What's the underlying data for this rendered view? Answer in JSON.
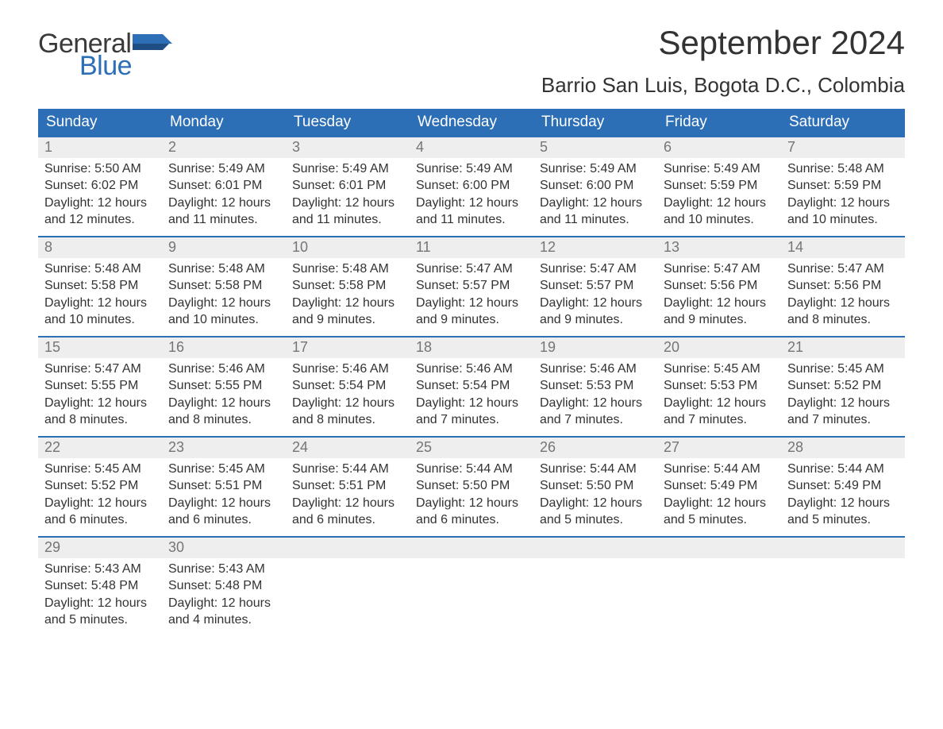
{
  "brand": {
    "word1": "General",
    "word2": "Blue",
    "color_gray": "#3a3a3a",
    "color_blue": "#2d6fb6"
  },
  "header": {
    "month_title": "September 2024",
    "location": "Barrio San Luis, Bogota D.C., Colombia"
  },
  "style": {
    "header_bg": "#2d6fb6",
    "header_fg": "#ffffff",
    "daynum_bg": "#eeeeee",
    "daynum_fg": "#757575",
    "row_border": "#2d6fb6",
    "body_text": "#333333",
    "page_bg": "#ffffff",
    "th_fontsize": 19,
    "daynum_fontsize": 18,
    "cell_fontsize": 16,
    "title_fontsize": 42,
    "location_fontsize": 26
  },
  "weekdays": [
    "Sunday",
    "Monday",
    "Tuesday",
    "Wednesday",
    "Thursday",
    "Friday",
    "Saturday"
  ],
  "weeks": [
    [
      {
        "day": "1",
        "sunrise": "Sunrise: 5:50 AM",
        "sunset": "Sunset: 6:02 PM",
        "dl1": "Daylight: 12 hours",
        "dl2": "and 12 minutes."
      },
      {
        "day": "2",
        "sunrise": "Sunrise: 5:49 AM",
        "sunset": "Sunset: 6:01 PM",
        "dl1": "Daylight: 12 hours",
        "dl2": "and 11 minutes."
      },
      {
        "day": "3",
        "sunrise": "Sunrise: 5:49 AM",
        "sunset": "Sunset: 6:01 PM",
        "dl1": "Daylight: 12 hours",
        "dl2": "and 11 minutes."
      },
      {
        "day": "4",
        "sunrise": "Sunrise: 5:49 AM",
        "sunset": "Sunset: 6:00 PM",
        "dl1": "Daylight: 12 hours",
        "dl2": "and 11 minutes."
      },
      {
        "day": "5",
        "sunrise": "Sunrise: 5:49 AM",
        "sunset": "Sunset: 6:00 PM",
        "dl1": "Daylight: 12 hours",
        "dl2": "and 11 minutes."
      },
      {
        "day": "6",
        "sunrise": "Sunrise: 5:49 AM",
        "sunset": "Sunset: 5:59 PM",
        "dl1": "Daylight: 12 hours",
        "dl2": "and 10 minutes."
      },
      {
        "day": "7",
        "sunrise": "Sunrise: 5:48 AM",
        "sunset": "Sunset: 5:59 PM",
        "dl1": "Daylight: 12 hours",
        "dl2": "and 10 minutes."
      }
    ],
    [
      {
        "day": "8",
        "sunrise": "Sunrise: 5:48 AM",
        "sunset": "Sunset: 5:58 PM",
        "dl1": "Daylight: 12 hours",
        "dl2": "and 10 minutes."
      },
      {
        "day": "9",
        "sunrise": "Sunrise: 5:48 AM",
        "sunset": "Sunset: 5:58 PM",
        "dl1": "Daylight: 12 hours",
        "dl2": "and 10 minutes."
      },
      {
        "day": "10",
        "sunrise": "Sunrise: 5:48 AM",
        "sunset": "Sunset: 5:58 PM",
        "dl1": "Daylight: 12 hours",
        "dl2": "and 9 minutes."
      },
      {
        "day": "11",
        "sunrise": "Sunrise: 5:47 AM",
        "sunset": "Sunset: 5:57 PM",
        "dl1": "Daylight: 12 hours",
        "dl2": "and 9 minutes."
      },
      {
        "day": "12",
        "sunrise": "Sunrise: 5:47 AM",
        "sunset": "Sunset: 5:57 PM",
        "dl1": "Daylight: 12 hours",
        "dl2": "and 9 minutes."
      },
      {
        "day": "13",
        "sunrise": "Sunrise: 5:47 AM",
        "sunset": "Sunset: 5:56 PM",
        "dl1": "Daylight: 12 hours",
        "dl2": "and 9 minutes."
      },
      {
        "day": "14",
        "sunrise": "Sunrise: 5:47 AM",
        "sunset": "Sunset: 5:56 PM",
        "dl1": "Daylight: 12 hours",
        "dl2": "and 8 minutes."
      }
    ],
    [
      {
        "day": "15",
        "sunrise": "Sunrise: 5:47 AM",
        "sunset": "Sunset: 5:55 PM",
        "dl1": "Daylight: 12 hours",
        "dl2": "and 8 minutes."
      },
      {
        "day": "16",
        "sunrise": "Sunrise: 5:46 AM",
        "sunset": "Sunset: 5:55 PM",
        "dl1": "Daylight: 12 hours",
        "dl2": "and 8 minutes."
      },
      {
        "day": "17",
        "sunrise": "Sunrise: 5:46 AM",
        "sunset": "Sunset: 5:54 PM",
        "dl1": "Daylight: 12 hours",
        "dl2": "and 8 minutes."
      },
      {
        "day": "18",
        "sunrise": "Sunrise: 5:46 AM",
        "sunset": "Sunset: 5:54 PM",
        "dl1": "Daylight: 12 hours",
        "dl2": "and 7 minutes."
      },
      {
        "day": "19",
        "sunrise": "Sunrise: 5:46 AM",
        "sunset": "Sunset: 5:53 PM",
        "dl1": "Daylight: 12 hours",
        "dl2": "and 7 minutes."
      },
      {
        "day": "20",
        "sunrise": "Sunrise: 5:45 AM",
        "sunset": "Sunset: 5:53 PM",
        "dl1": "Daylight: 12 hours",
        "dl2": "and 7 minutes."
      },
      {
        "day": "21",
        "sunrise": "Sunrise: 5:45 AM",
        "sunset": "Sunset: 5:52 PM",
        "dl1": "Daylight: 12 hours",
        "dl2": "and 7 minutes."
      }
    ],
    [
      {
        "day": "22",
        "sunrise": "Sunrise: 5:45 AM",
        "sunset": "Sunset: 5:52 PM",
        "dl1": "Daylight: 12 hours",
        "dl2": "and 6 minutes."
      },
      {
        "day": "23",
        "sunrise": "Sunrise: 5:45 AM",
        "sunset": "Sunset: 5:51 PM",
        "dl1": "Daylight: 12 hours",
        "dl2": "and 6 minutes."
      },
      {
        "day": "24",
        "sunrise": "Sunrise: 5:44 AM",
        "sunset": "Sunset: 5:51 PM",
        "dl1": "Daylight: 12 hours",
        "dl2": "and 6 minutes."
      },
      {
        "day": "25",
        "sunrise": "Sunrise: 5:44 AM",
        "sunset": "Sunset: 5:50 PM",
        "dl1": "Daylight: 12 hours",
        "dl2": "and 6 minutes."
      },
      {
        "day": "26",
        "sunrise": "Sunrise: 5:44 AM",
        "sunset": "Sunset: 5:50 PM",
        "dl1": "Daylight: 12 hours",
        "dl2": "and 5 minutes."
      },
      {
        "day": "27",
        "sunrise": "Sunrise: 5:44 AM",
        "sunset": "Sunset: 5:49 PM",
        "dl1": "Daylight: 12 hours",
        "dl2": "and 5 minutes."
      },
      {
        "day": "28",
        "sunrise": "Sunrise: 5:44 AM",
        "sunset": "Sunset: 5:49 PM",
        "dl1": "Daylight: 12 hours",
        "dl2": "and 5 minutes."
      }
    ],
    [
      {
        "day": "29",
        "sunrise": "Sunrise: 5:43 AM",
        "sunset": "Sunset: 5:48 PM",
        "dl1": "Daylight: 12 hours",
        "dl2": "and 5 minutes."
      },
      {
        "day": "30",
        "sunrise": "Sunrise: 5:43 AM",
        "sunset": "Sunset: 5:48 PM",
        "dl1": "Daylight: 12 hours",
        "dl2": "and 4 minutes."
      },
      {
        "empty": true
      },
      {
        "empty": true
      },
      {
        "empty": true
      },
      {
        "empty": true
      },
      {
        "empty": true
      }
    ]
  ]
}
